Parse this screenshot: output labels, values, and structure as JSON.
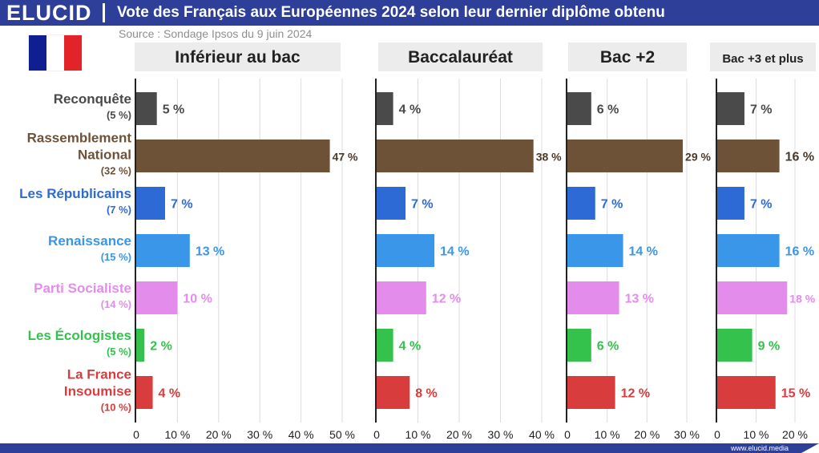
{
  "brand": {
    "logo": "ELUCID",
    "url": "www.elucid.media"
  },
  "title": "Vote des Français aux Européennes 2024 selon leur dernier diplôme obtenu",
  "source": "Source : Sondage Ipsos du 9 juin 2024",
  "flag_colors": [
    "#0f1f8f",
    "#ffffff",
    "#e2242a"
  ],
  "chart_data": {
    "type": "bar",
    "orientation": "horizontal",
    "grid": true,
    "categories": [
      {
        "name": "Reconquête",
        "overall": "(5 %)",
        "color": "#4a4a4a"
      },
      {
        "name": "Rassemblement National",
        "overall": "(32 %)",
        "color": "#6e5238"
      },
      {
        "name": "Les Républicains",
        "overall": "(7 %)",
        "color": "#2e6ad6"
      },
      {
        "name": "Renaissance",
        "overall": "(15 %)",
        "color": "#3a96e8"
      },
      {
        "name": "Parti Socialiste",
        "overall": "(14 %)",
        "color": "#e48ceb"
      },
      {
        "name": "Les Écologistes",
        "overall": "(5 %)",
        "color": "#35c24c"
      },
      {
        "name": "La France Insoumise",
        "overall": "(10 %)",
        "color": "#d93c3c"
      }
    ],
    "panels": [
      {
        "title": "Inférieur au bac",
        "values": [
          5,
          47,
          7,
          13,
          10,
          2,
          4
        ],
        "xlim": [
          0,
          50
        ],
        "xticks": [
          "0",
          "10 %",
          "20 %",
          "30 %",
          "40 %",
          "50 %"
        ]
      },
      {
        "title": "Baccalauréat",
        "values": [
          4,
          38,
          7,
          14,
          12,
          4,
          8
        ],
        "xlim": [
          0,
          40
        ],
        "xticks": [
          "0",
          "10 %",
          "20 %",
          "30 %",
          "40 %"
        ]
      },
      {
        "title": "Bac +2",
        "values": [
          6,
          29,
          7,
          14,
          13,
          6,
          12
        ],
        "xlim": [
          0,
          30
        ],
        "xticks": [
          "0",
          "10 %",
          "20 %",
          "30 %"
        ]
      },
      {
        "title": "Bac +3 et plus",
        "values": [
          7,
          16,
          7,
          16,
          18,
          9,
          15
        ],
        "xlim": [
          0,
          20
        ],
        "xticks": [
          "0",
          "10 %",
          "20 %"
        ]
      }
    ],
    "value_suffix": " %"
  }
}
